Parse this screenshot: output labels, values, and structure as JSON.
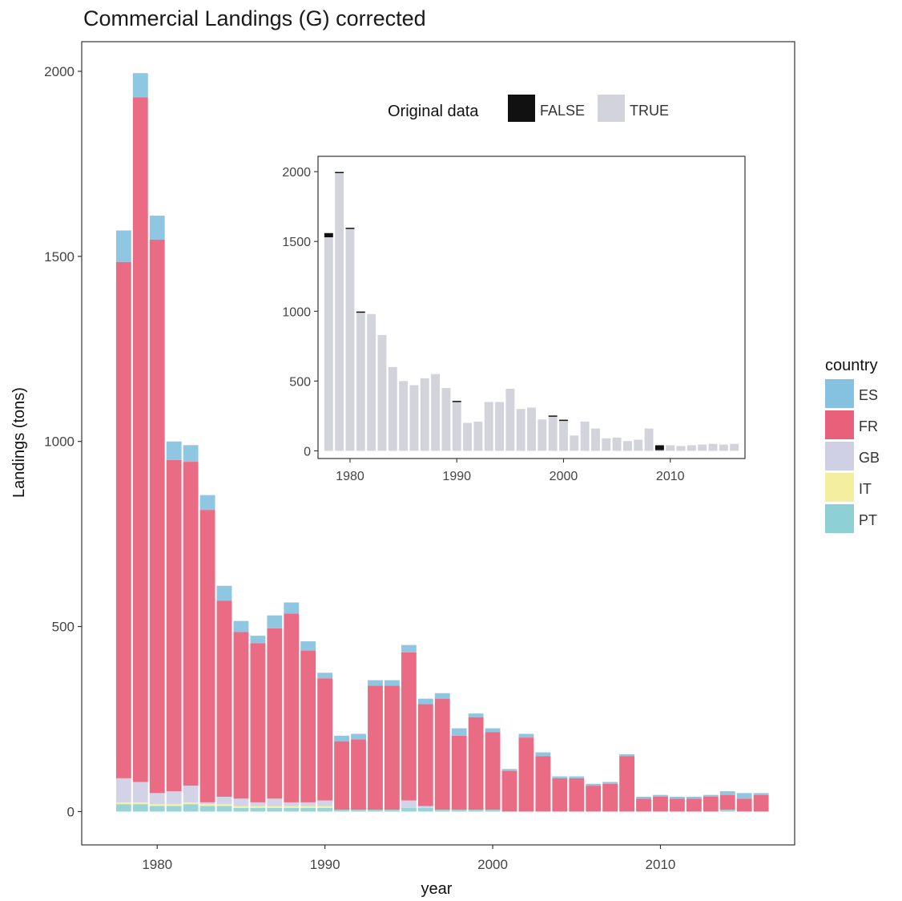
{
  "chart_data": [
    {
      "type": "bar",
      "stacked": true,
      "title": "Commercial Landings (G) corrected",
      "xlabel": "year",
      "ylabel": "Landings (tons)",
      "xlim": [
        1975.5,
        2018
      ],
      "ylim": [
        -90,
        2080
      ],
      "x_ticks": [
        1980,
        1990,
        2000,
        2010
      ],
      "y_ticks": [
        0,
        500,
        1000,
        1500,
        2000
      ],
      "legend": {
        "title": "country",
        "placement": "right"
      },
      "categories": [
        1978,
        1979,
        1980,
        1981,
        1982,
        1983,
        1984,
        1985,
        1986,
        1987,
        1988,
        1989,
        1990,
        1991,
        1992,
        1993,
        1994,
        1995,
        1996,
        1997,
        1998,
        1999,
        2000,
        2001,
        2002,
        2003,
        2004,
        2005,
        2006,
        2007,
        2008,
        2009,
        2010,
        2011,
        2012,
        2013,
        2014,
        2015,
        2016
      ],
      "series": [
        {
          "name": "PT",
          "color": "#8fd0d4",
          "values": [
            20,
            20,
            15,
            15,
            20,
            15,
            15,
            10,
            10,
            10,
            10,
            10,
            10,
            5,
            5,
            5,
            5,
            10,
            10,
            5,
            5,
            5,
            5,
            0,
            0,
            0,
            0,
            0,
            0,
            0,
            0,
            0,
            0,
            0,
            0,
            0,
            5,
            0,
            0
          ]
        },
        {
          "name": "IT",
          "color": "#f3ef9e",
          "values": [
            5,
            5,
            5,
            5,
            5,
            5,
            5,
            5,
            5,
            5,
            5,
            5,
            5,
            0,
            0,
            0,
            0,
            0,
            0,
            0,
            0,
            0,
            0,
            0,
            0,
            0,
            0,
            0,
            0,
            0,
            0,
            0,
            0,
            0,
            0,
            0,
            0,
            0,
            0
          ]
        },
        {
          "name": "GB",
          "color": "#cfcfe6",
          "values": [
            65,
            55,
            30,
            35,
            45,
            5,
            20,
            20,
            10,
            20,
            10,
            10,
            15,
            0,
            0,
            0,
            0,
            20,
            5,
            0,
            0,
            0,
            0,
            0,
            0,
            0,
            0,
            0,
            0,
            0,
            0,
            0,
            0,
            0,
            0,
            0,
            0,
            0,
            0
          ]
        },
        {
          "name": "FR",
          "color": "#e8607a",
          "values": [
            1395,
            1850,
            1495,
            895,
            875,
            790,
            530,
            450,
            430,
            460,
            510,
            410,
            330,
            185,
            190,
            335,
            335,
            400,
            275,
            300,
            200,
            250,
            210,
            110,
            200,
            150,
            90,
            90,
            70,
            75,
            150,
            35,
            40,
            35,
            35,
            40,
            40,
            35,
            45
          ]
        },
        {
          "name": "ES",
          "color": "#86c1e0",
          "values": [
            85,
            65,
            65,
            50,
            45,
            40,
            40,
            30,
            20,
            35,
            30,
            25,
            15,
            15,
            15,
            15,
            15,
            20,
            15,
            15,
            20,
            10,
            10,
            5,
            10,
            10,
            5,
            5,
            5,
            5,
            5,
            5,
            5,
            5,
            5,
            5,
            10,
            15,
            5
          ]
        }
      ]
    },
    {
      "type": "bar",
      "stacked": true,
      "legend": {
        "title": "Original data",
        "placement": "top",
        "labels": [
          "FALSE",
          "TRUE"
        ],
        "colors": [
          "#111111",
          "#d3d3dc"
        ]
      },
      "xlim": [
        1977,
        2017
      ],
      "ylim": [
        -55,
        2110
      ],
      "x_ticks": [
        1980,
        1990,
        2000,
        2010
      ],
      "y_ticks": [
        0,
        500,
        1000,
        1500,
        2000
      ],
      "categories": [
        1978,
        1979,
        1980,
        1981,
        1982,
        1983,
        1984,
        1985,
        1986,
        1987,
        1988,
        1989,
        1990,
        1991,
        1992,
        1993,
        1994,
        1995,
        1996,
        1997,
        1998,
        1999,
        2000,
        2001,
        2002,
        2003,
        2004,
        2005,
        2006,
        2007,
        2008,
        2009,
        2010,
        2011,
        2012,
        2013,
        2014,
        2015,
        2016
      ],
      "series": [
        {
          "name": "TRUE",
          "values": [
            1530,
            1990,
            1590,
            990,
            980,
            830,
            600,
            500,
            470,
            520,
            550,
            450,
            350,
            200,
            210,
            350,
            350,
            445,
            300,
            310,
            225,
            245,
            215,
            110,
            210,
            160,
            90,
            95,
            70,
            80,
            160,
            5,
            40,
            35,
            40,
            45,
            50,
            45,
            50
          ]
        },
        {
          "name": "FALSE",
          "values": [
            30,
            8,
            8,
            8,
            0,
            0,
            0,
            0,
            0,
            0,
            0,
            0,
            8,
            0,
            0,
            0,
            0,
            0,
            0,
            0,
            0,
            8,
            8,
            0,
            0,
            0,
            0,
            0,
            0,
            0,
            0,
            35,
            0,
            0,
            0,
            0,
            0,
            0,
            0
          ]
        }
      ]
    }
  ]
}
